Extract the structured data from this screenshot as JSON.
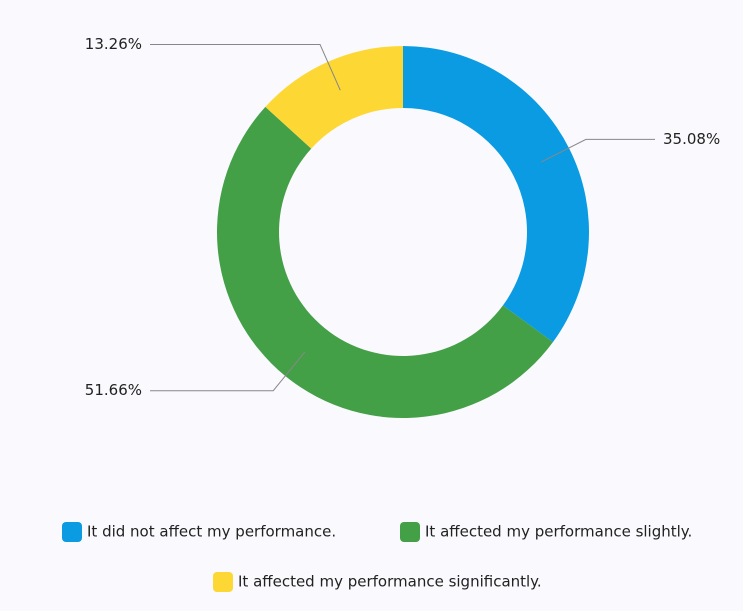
{
  "chart_data": {
    "type": "donut",
    "series": [
      {
        "name": "It did not affect my performance.",
        "color": "#0a9be2",
        "values": [
          35.08
        ],
        "value_labels": [
          "35.08%"
        ]
      },
      {
        "name": "It affected my performance slightly.",
        "color": "#43a047",
        "values": [
          51.66
        ],
        "value_labels": [
          "51.66%"
        ]
      },
      {
        "name": "It affected my performance significantly.",
        "color": "#fdd835",
        "values": [
          13.26
        ],
        "value_labels": [
          "13.26%"
        ]
      }
    ]
  }
}
